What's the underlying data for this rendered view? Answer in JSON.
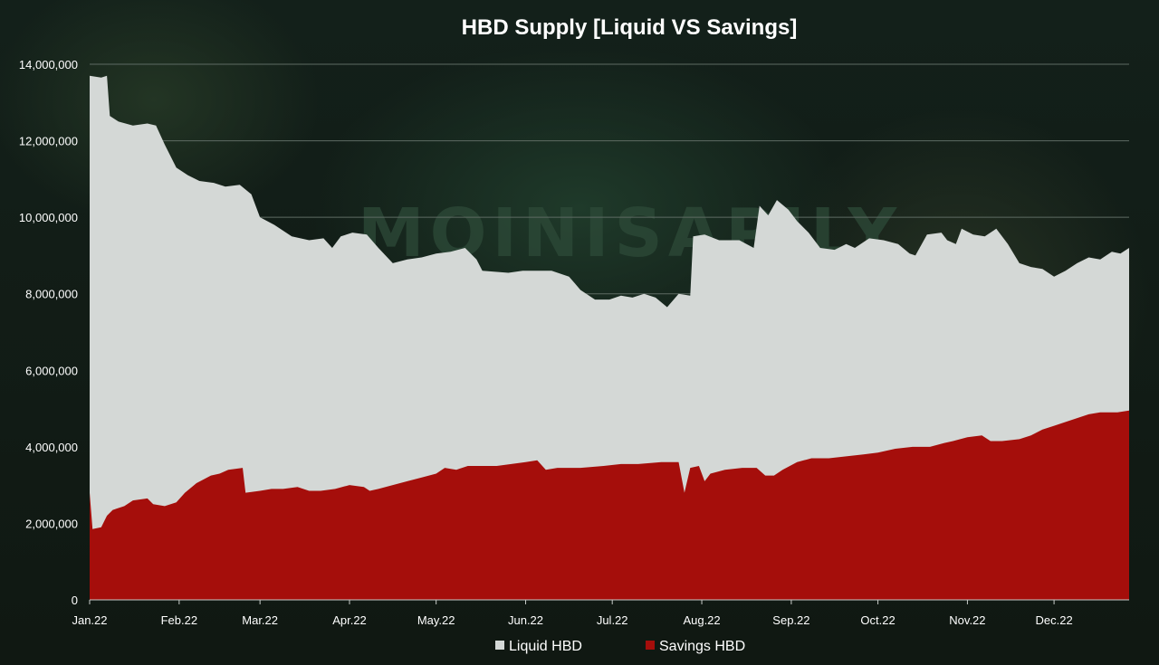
{
  "watermark": "MOINISAPILY",
  "colors": {
    "liquid": "#d4d8d6",
    "savings": "#a50e0b",
    "grid": "#5e6b63",
    "text": "#ffffff"
  },
  "chart_data": {
    "type": "area",
    "stacked": true,
    "title": "HBD Supply [Liquid VS Savings]",
    "xlabel": "",
    "ylabel": "",
    "x_range": [
      0,
      360
    ],
    "ylim": [
      0,
      14000000
    ],
    "grid": true,
    "legend": "bottom",
    "months": [
      {
        "label": "Jan.22",
        "day": 0
      },
      {
        "label": "Feb.22",
        "day": 31
      },
      {
        "label": "Mar.22",
        "day": 59
      },
      {
        "label": "Apr.22",
        "day": 90
      },
      {
        "label": "May.22",
        "day": 120
      },
      {
        "label": "Jun.22",
        "day": 151
      },
      {
        "label": "Jul.22",
        "day": 181
      },
      {
        "label": "Aug.22",
        "day": 212
      },
      {
        "label": "Sep.22",
        "day": 243
      },
      {
        "label": "Oct.22",
        "day": 273
      },
      {
        "label": "Nov.22",
        "day": 304
      },
      {
        "label": "Dec.22",
        "day": 334
      }
    ],
    "yticks": [
      {
        "value": 0,
        "label": "0"
      },
      {
        "value": 2000000,
        "label": "2,000,000"
      },
      {
        "value": 4000000,
        "label": "4,000,000"
      },
      {
        "value": 6000000,
        "label": "6,000,000"
      },
      {
        "value": 8000000,
        "label": "8,000,000"
      },
      {
        "value": 10000000,
        "label": "10,000,000"
      },
      {
        "value": 12000000,
        "label": "12,000,000"
      },
      {
        "value": 14000000,
        "label": "14,000,000"
      }
    ],
    "series": [
      {
        "name": "Liquid HBD",
        "total": [
          [
            0,
            13700000
          ],
          [
            4,
            13650000
          ],
          [
            6,
            13700000
          ],
          [
            7,
            12650000
          ],
          [
            10,
            12500000
          ],
          [
            15,
            12400000
          ],
          [
            20,
            12450000
          ],
          [
            23,
            12400000
          ],
          [
            26,
            11900000
          ],
          [
            30,
            11300000
          ],
          [
            34,
            11100000
          ],
          [
            38,
            10950000
          ],
          [
            43,
            10900000
          ],
          [
            47,
            10800000
          ],
          [
            52,
            10850000
          ],
          [
            56,
            10600000
          ],
          [
            59,
            10000000
          ],
          [
            64,
            9800000
          ],
          [
            70,
            9500000
          ],
          [
            76,
            9400000
          ],
          [
            81,
            9450000
          ],
          [
            84,
            9200000
          ],
          [
            87,
            9500000
          ],
          [
            91,
            9600000
          ],
          [
            96,
            9550000
          ],
          [
            100,
            9200000
          ],
          [
            105,
            8800000
          ],
          [
            110,
            8900000
          ],
          [
            115,
            8950000
          ],
          [
            120,
            9050000
          ],
          [
            125,
            9100000
          ],
          [
            130,
            9200000
          ],
          [
            134,
            8900000
          ],
          [
            136,
            8600000
          ],
          [
            145,
            8550000
          ],
          [
            150,
            8600000
          ],
          [
            160,
            8600000
          ],
          [
            166,
            8450000
          ],
          [
            170,
            8100000
          ],
          [
            175,
            7850000
          ],
          [
            180,
            7850000
          ],
          [
            184,
            7950000
          ],
          [
            188,
            7900000
          ],
          [
            192,
            8000000
          ],
          [
            196,
            7900000
          ],
          [
            200,
            7650000
          ],
          [
            204,
            8000000
          ],
          [
            208,
            7950000
          ],
          [
            209,
            9500000
          ],
          [
            213,
            9550000
          ],
          [
            218,
            9400000
          ],
          [
            225,
            9400000
          ],
          [
            230,
            9200000
          ],
          [
            232,
            10300000
          ],
          [
            235,
            10050000
          ],
          [
            238,
            10450000
          ],
          [
            242,
            10200000
          ],
          [
            245,
            9900000
          ],
          [
            249,
            9600000
          ],
          [
            253,
            9200000
          ],
          [
            258,
            9150000
          ],
          [
            262,
            9300000
          ],
          [
            265,
            9200000
          ],
          [
            270,
            9450000
          ],
          [
            275,
            9400000
          ],
          [
            280,
            9300000
          ],
          [
            284,
            9050000
          ],
          [
            286,
            9000000
          ],
          [
            290,
            9550000
          ],
          [
            295,
            9600000
          ],
          [
            297,
            9400000
          ],
          [
            300,
            9300000
          ],
          [
            302,
            9700000
          ],
          [
            306,
            9550000
          ],
          [
            310,
            9500000
          ],
          [
            314,
            9700000
          ],
          [
            318,
            9300000
          ],
          [
            322,
            8800000
          ],
          [
            326,
            8700000
          ],
          [
            330,
            8650000
          ],
          [
            334,
            8450000
          ],
          [
            338,
            8600000
          ],
          [
            342,
            8800000
          ],
          [
            346,
            8950000
          ],
          [
            350,
            8900000
          ],
          [
            354,
            9100000
          ],
          [
            357,
            9050000
          ],
          [
            360,
            9200000
          ]
        ]
      },
      {
        "name": "Savings HBD",
        "values": [
          [
            0,
            2800000
          ],
          [
            1,
            1850000
          ],
          [
            4,
            1900000
          ],
          [
            6,
            2200000
          ],
          [
            8,
            2350000
          ],
          [
            12,
            2450000
          ],
          [
            15,
            2600000
          ],
          [
            20,
            2650000
          ],
          [
            22,
            2500000
          ],
          [
            26,
            2450000
          ],
          [
            30,
            2550000
          ],
          [
            33,
            2800000
          ],
          [
            37,
            3050000
          ],
          [
            42,
            3250000
          ],
          [
            45,
            3300000
          ],
          [
            48,
            3400000
          ],
          [
            53,
            3450000
          ],
          [
            54,
            2800000
          ],
          [
            59,
            2850000
          ],
          [
            63,
            2900000
          ],
          [
            67,
            2900000
          ],
          [
            72,
            2950000
          ],
          [
            76,
            2850000
          ],
          [
            80,
            2850000
          ],
          [
            85,
            2900000
          ],
          [
            90,
            3000000
          ],
          [
            95,
            2950000
          ],
          [
            97,
            2850000
          ],
          [
            100,
            2900000
          ],
          [
            105,
            3000000
          ],
          [
            110,
            3100000
          ],
          [
            115,
            3200000
          ],
          [
            120,
            3300000
          ],
          [
            123,
            3450000
          ],
          [
            127,
            3400000
          ],
          [
            131,
            3500000
          ],
          [
            136,
            3500000
          ],
          [
            141,
            3500000
          ],
          [
            146,
            3550000
          ],
          [
            151,
            3600000
          ],
          [
            155,
            3650000
          ],
          [
            158,
            3400000
          ],
          [
            162,
            3450000
          ],
          [
            170,
            3450000
          ],
          [
            178,
            3500000
          ],
          [
            184,
            3550000
          ],
          [
            190,
            3550000
          ],
          [
            198,
            3600000
          ],
          [
            204,
            3600000
          ],
          [
            206,
            2800000
          ],
          [
            208,
            3450000
          ],
          [
            211,
            3500000
          ],
          [
            213,
            3100000
          ],
          [
            215,
            3300000
          ],
          [
            220,
            3400000
          ],
          [
            226,
            3450000
          ],
          [
            231,
            3450000
          ],
          [
            234,
            3250000
          ],
          [
            237,
            3250000
          ],
          [
            240,
            3400000
          ],
          [
            245,
            3600000
          ],
          [
            250,
            3700000
          ],
          [
            256,
            3700000
          ],
          [
            262,
            3750000
          ],
          [
            268,
            3800000
          ],
          [
            273,
            3850000
          ],
          [
            279,
            3950000
          ],
          [
            285,
            4000000
          ],
          [
            291,
            4000000
          ],
          [
            296,
            4100000
          ],
          [
            299,
            4150000
          ],
          [
            304,
            4250000
          ],
          [
            309,
            4300000
          ],
          [
            312,
            4150000
          ],
          [
            316,
            4150000
          ],
          [
            322,
            4200000
          ],
          [
            326,
            4300000
          ],
          [
            330,
            4450000
          ],
          [
            334,
            4550000
          ],
          [
            338,
            4650000
          ],
          [
            342,
            4750000
          ],
          [
            346,
            4850000
          ],
          [
            350,
            4900000
          ],
          [
            356,
            4900000
          ],
          [
            360,
            4950000
          ]
        ]
      }
    ]
  }
}
